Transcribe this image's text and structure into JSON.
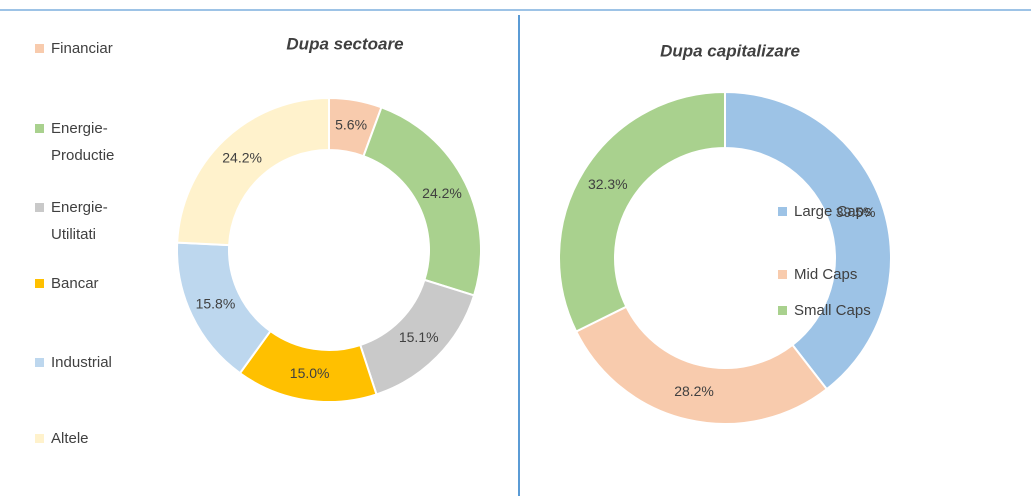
{
  "chart_data": [
    {
      "type": "donut",
      "title": "Dupa sectoare",
      "categories": [
        "Financiar",
        "Energie-Productie",
        "Energie-Utilitati",
        "Bancar",
        "Industrial",
        "Altele"
      ],
      "values": [
        5.6,
        24.2,
        15.1,
        15.0,
        15.8,
        24.2
      ],
      "value_labels": [
        "5.6%",
        "24.2%",
        "15.1%",
        "15.0%",
        "15.8%",
        "24.2%"
      ],
      "colors": [
        "#f8cbad",
        "#a9d18e",
        "#c9c9c9",
        "#ffc000",
        "#bdd7ee",
        "#fff2cc"
      ],
      "legend": "left"
    },
    {
      "type": "donut",
      "title": "Dupa capitalizare",
      "categories": [
        "Large Caps",
        "Mid Caps",
        "Small Caps"
      ],
      "values": [
        39.5,
        28.2,
        32.3
      ],
      "value_labels": [
        "39.5%",
        "28.2%",
        "32.3%"
      ],
      "colors": [
        "#9dc3e6",
        "#f8cbad",
        "#a9d18e"
      ],
      "legend": "right"
    }
  ]
}
